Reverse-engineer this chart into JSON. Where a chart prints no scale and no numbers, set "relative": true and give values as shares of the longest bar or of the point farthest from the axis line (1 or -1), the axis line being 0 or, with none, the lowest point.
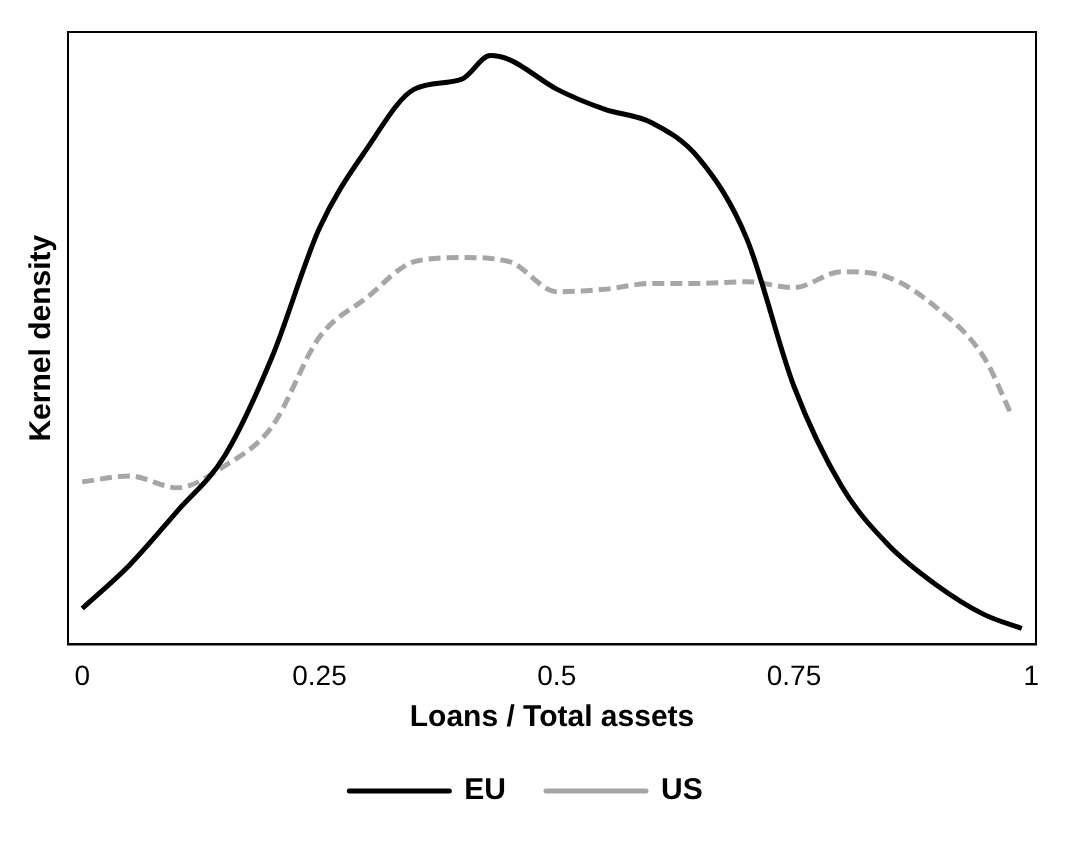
{
  "chart_data": {
    "type": "line",
    "xlabel": "Loans / Total assets",
    "ylabel": "Kernel density",
    "relative": true,
    "xlim": [
      -0.015,
      1.005
    ],
    "xticks": [
      0,
      0.25,
      0.5,
      0.75,
      1
    ],
    "grid": false,
    "legend": "bottom",
    "marker": "none",
    "series": [
      {
        "name": "EU",
        "color": "#000000",
        "line_style": "solid",
        "x": [
          0,
          0.05,
          0.1,
          0.15,
          0.2,
          0.25,
          0.3,
          0.35,
          0.4,
          0.43,
          0.45,
          0.5,
          0.55,
          0.6,
          0.65,
          0.7,
          0.75,
          0.8,
          0.85,
          0.9,
          0.95,
          0.99
        ],
        "values": [
          0.061,
          0.135,
          0.226,
          0.32,
          0.488,
          0.707,
          0.842,
          0.943,
          0.96,
          1,
          0.993,
          0.943,
          0.909,
          0.886,
          0.825,
          0.69,
          0.438,
          0.269,
          0.168,
          0.101,
          0.051,
          0.027
        ]
      },
      {
        "name": "US",
        "color": "#a6a6a6",
        "line_style": "dashed",
        "x": [
          0,
          0.05,
          0.1,
          0.15,
          0.2,
          0.25,
          0.3,
          0.35,
          0.4,
          0.45,
          0.5,
          0.55,
          0.6,
          0.65,
          0.7,
          0.75,
          0.8,
          0.85,
          0.9,
          0.95,
          0.98
        ],
        "values": [
          0.276,
          0.286,
          0.266,
          0.303,
          0.37,
          0.522,
          0.589,
          0.65,
          0.657,
          0.65,
          0.599,
          0.603,
          0.613,
          0.613,
          0.616,
          0.606,
          0.633,
          0.623,
          0.572,
          0.488,
          0.387
        ]
      }
    ]
  }
}
